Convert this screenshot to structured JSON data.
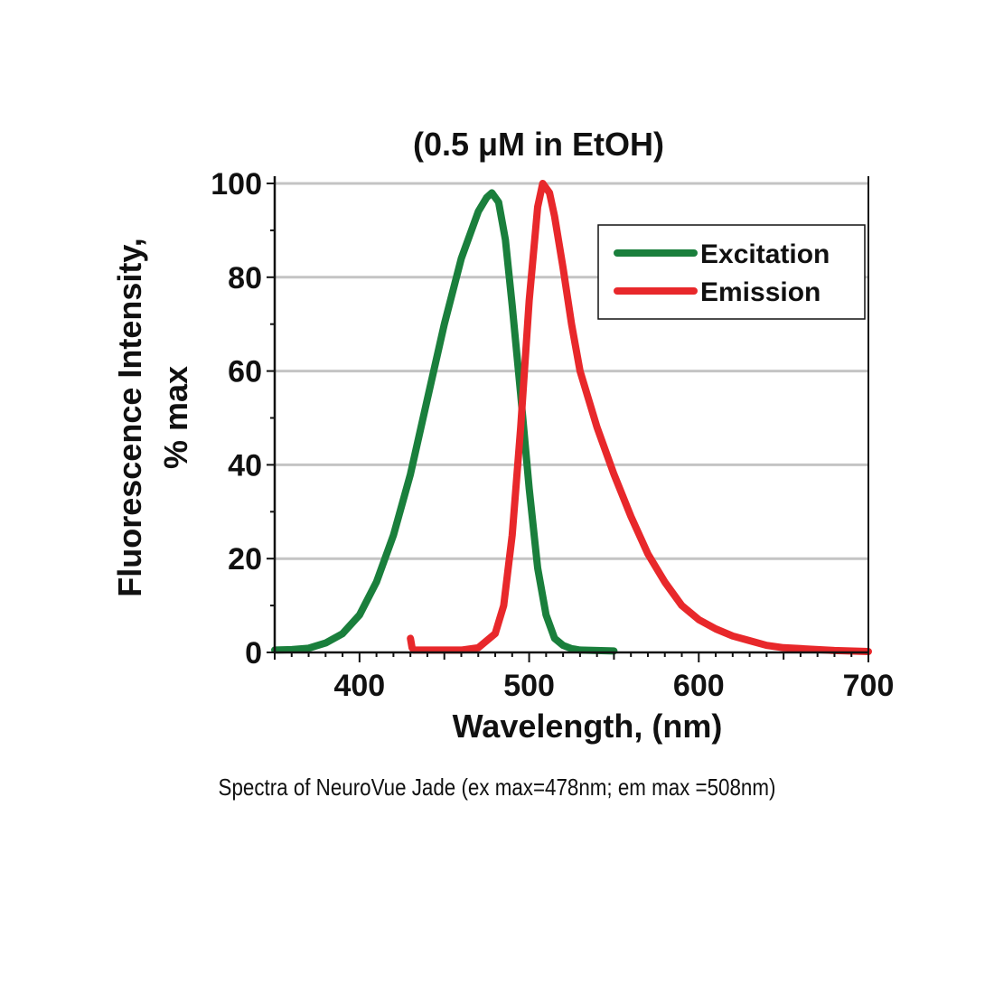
{
  "chart_data": {
    "type": "line",
    "title": "(0.5 μM in EtOH)",
    "xlabel": "Wavelength, (nm)",
    "ylabel_line1": "Fluorescence Intensity,",
    "ylabel_line2": "% max",
    "xlim": [
      350,
      700
    ],
    "ylim": [
      0,
      100
    ],
    "xticks": [
      400,
      500,
      600,
      700
    ],
    "yticks": [
      0,
      20,
      40,
      60,
      80,
      100
    ],
    "xtick_labels": [
      "400",
      "500",
      "600",
      "700"
    ],
    "ytick_labels": [
      "0",
      "20",
      "40",
      "60",
      "80",
      "100"
    ],
    "grid": "horizontal",
    "legend_position": "top-right",
    "series": [
      {
        "name": "Excitation",
        "color": "#1a7f3c",
        "x": [
          350,
          360,
          370,
          380,
          390,
          400,
          410,
          420,
          430,
          440,
          450,
          460,
          470,
          475,
          478,
          482,
          486,
          490,
          495,
          500,
          505,
          510,
          515,
          520,
          525,
          530,
          540,
          550
        ],
        "y": [
          0.5,
          0.6,
          0.9,
          2,
          4,
          8,
          15,
          25,
          38,
          54,
          70,
          84,
          94,
          97,
          98,
          96,
          88,
          74,
          55,
          35,
          18,
          8,
          3,
          1.5,
          0.8,
          0.5,
          0.4,
          0.3
        ]
      },
      {
        "name": "Emission",
        "color": "#e8282b",
        "x": [
          430,
          431,
          432,
          440,
          450,
          460,
          470,
          480,
          485,
          490,
          495,
          500,
          505,
          508,
          512,
          515,
          520,
          525,
          530,
          540,
          550,
          560,
          570,
          580,
          590,
          600,
          610,
          620,
          630,
          640,
          650,
          660,
          680,
          700
        ],
        "y": [
          3,
          1,
          0.5,
          0.5,
          0.5,
          0.5,
          1,
          4,
          10,
          25,
          48,
          75,
          95,
          100,
          98,
          93,
          82,
          70,
          60,
          48,
          38,
          29,
          21,
          15,
          10,
          7,
          5,
          3.5,
          2.5,
          1.5,
          1,
          0.8,
          0.4,
          0.2
        ]
      }
    ]
  },
  "caption": "Spectra of NeuroVue Jade (ex max=478nm; em max =508nm)"
}
